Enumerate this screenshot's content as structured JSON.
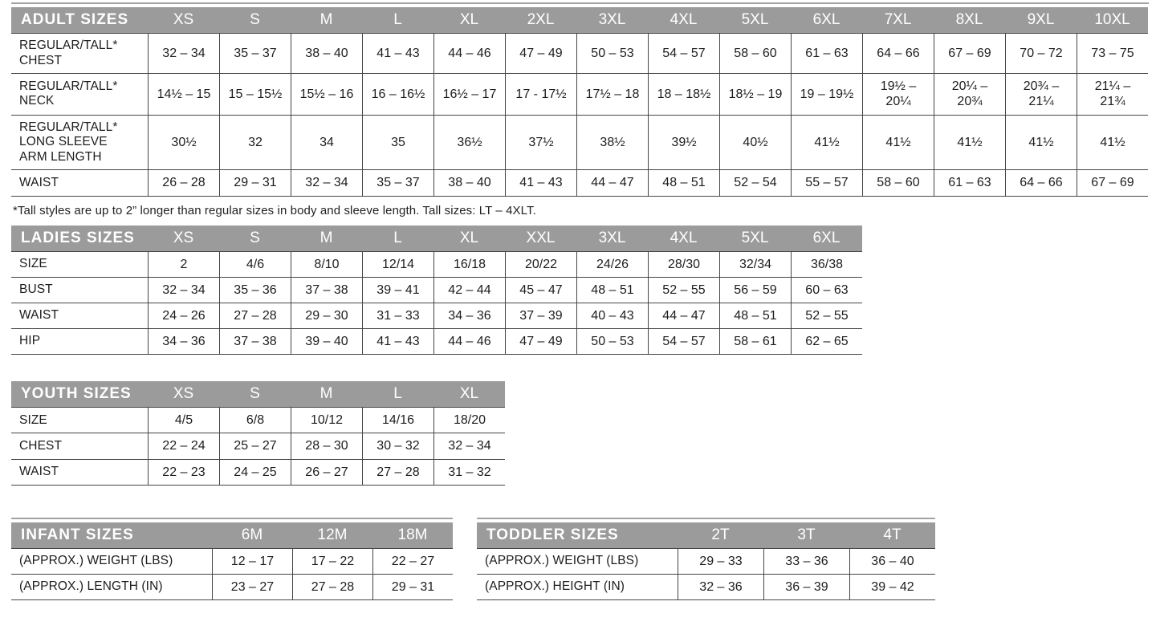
{
  "theme": {
    "header_bg": "#9b9b9b",
    "header_text": "#ffffff",
    "border": "#454545",
    "hairline": "#a4a4a4",
    "body_text": "#1d1d1d"
  },
  "tables": {
    "adult": {
      "title": "ADULT SIZES",
      "columns": [
        "XS",
        "S",
        "M",
        "L",
        "XL",
        "2XL",
        "3XL",
        "4XL",
        "5XL",
        "6XL",
        "7XL",
        "8XL",
        "9XL",
        "10XL"
      ],
      "rows": [
        {
          "label": "REGULAR/TALL*\nCHEST",
          "values": [
            "32 – 34",
            "35 – 37",
            "38 – 40",
            "41 – 43",
            "44 – 46",
            "47 – 49",
            "50 – 53",
            "54 – 57",
            "58 – 60",
            "61 – 63",
            "64 – 66",
            "67 – 69",
            "70 – 72",
            "73 – 75"
          ]
        },
        {
          "label": "REGULAR/TALL*\nNECK",
          "values": [
            "14½ – 15",
            "15 – 15½",
            "15½ – 16",
            "16 – 16½",
            "16½ – 17",
            "17 - 17½",
            "17½ – 18",
            "18 – 18½",
            "18½ – 19",
            "19 – 19½",
            "19½ –\n20¼",
            "20¼ –\n20¾",
            "20¾ –\n21¼",
            "21¼ –\n21¾"
          ]
        },
        {
          "label": "REGULAR/TALL*\nLONG SLEEVE\nARM LENGTH",
          "values": [
            "30½",
            "32",
            "34",
            "35",
            "36½",
            "37½",
            "38½",
            "39½",
            "40½",
            "41½",
            "41½",
            "41½",
            "41½",
            "41½"
          ]
        },
        {
          "label": "WAIST",
          "values": [
            "26 – 28",
            "29 – 31",
            "32 – 34",
            "35 – 37",
            "38 – 40",
            "41 – 43",
            "44 – 47",
            "48 – 51",
            "52 – 54",
            "55 – 57",
            "58 – 60",
            "61 – 63",
            "64 – 66",
            "67 – 69"
          ]
        }
      ],
      "footnote": "*Tall styles are up to 2” longer than regular sizes in body and sleeve length. Tall sizes: LT – 4XLT."
    },
    "ladies": {
      "title": "LADIES SIZES",
      "columns": [
        "XS",
        "S",
        "M",
        "L",
        "XL",
        "XXL",
        "3XL",
        "4XL",
        "5XL",
        "6XL"
      ],
      "rows": [
        {
          "label": "SIZE",
          "values": [
            "2",
            "4/6",
            "8/10",
            "12/14",
            "16/18",
            "20/22",
            "24/26",
            "28/30",
            "32/34",
            "36/38"
          ]
        },
        {
          "label": "BUST",
          "values": [
            "32 – 34",
            "35 – 36",
            "37 – 38",
            "39 – 41",
            "42 – 44",
            "45 – 47",
            "48 – 51",
            "52 – 55",
            "56 – 59",
            "60 – 63"
          ]
        },
        {
          "label": "WAIST",
          "values": [
            "24 – 26",
            "27 – 28",
            "29 – 30",
            "31 – 33",
            "34 – 36",
            "37 – 39",
            "40 – 43",
            "44 – 47",
            "48 – 51",
            "52 – 55"
          ]
        },
        {
          "label": "HIP",
          "values": [
            "34 – 36",
            "37 – 38",
            "39 – 40",
            "41 – 43",
            "44 – 46",
            "47 – 49",
            "50 – 53",
            "54 – 57",
            "58 – 61",
            "62 – 65"
          ]
        }
      ]
    },
    "youth": {
      "title": "YOUTH SIZES",
      "columns": [
        "XS",
        "S",
        "M",
        "L",
        "XL"
      ],
      "rows": [
        {
          "label": "SIZE",
          "values": [
            "4/5",
            "6/8",
            "10/12",
            "14/16",
            "18/20"
          ]
        },
        {
          "label": "CHEST",
          "values": [
            "22 – 24",
            "25 – 27",
            "28 – 30",
            "30 – 32",
            "32 – 34"
          ]
        },
        {
          "label": "WAIST",
          "values": [
            "22 – 23",
            "24 – 25",
            "26 – 27",
            "27 – 28",
            "31 – 32"
          ]
        }
      ]
    },
    "infant": {
      "title": "INFANT SIZES",
      "columns": [
        "6M",
        "12M",
        "18M"
      ],
      "rows": [
        {
          "label": "(APPROX.) WEIGHT (LBS)",
          "values": [
            "12 – 17",
            "17 – 22",
            "22 – 27"
          ]
        },
        {
          "label": "(APPROX.) LENGTH (IN)",
          "values": [
            "23 – 27",
            "27 – 28",
            "29 – 31"
          ]
        }
      ]
    },
    "toddler": {
      "title": "TODDLER SIZES",
      "columns": [
        "2T",
        "3T",
        "4T"
      ],
      "rows": [
        {
          "label": "(APPROX.) WEIGHT (LBS)",
          "values": [
            "29 – 33",
            "33 – 36",
            "36 – 40"
          ]
        },
        {
          "label": "(APPROX.) HEIGHT (IN)",
          "values": [
            "32 – 36",
            "36 – 39",
            "39 – 42"
          ]
        }
      ]
    }
  }
}
